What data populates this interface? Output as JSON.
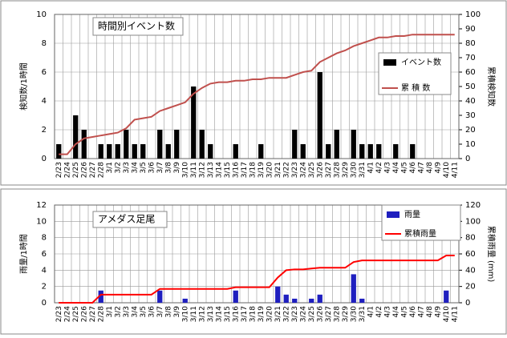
{
  "chart_data": [
    {
      "type": "bar",
      "title": "時間別イベント数",
      "y_label": "検知数/1時間",
      "y2_label": "累積検知数",
      "categories": [
        "2/23",
        "2/24",
        "2/25",
        "2/26",
        "2/27",
        "2/28",
        "3/1",
        "3/2",
        "3/3",
        "3/4",
        "3/5",
        "3/6",
        "3/7",
        "3/8",
        "3/9",
        "3/10",
        "3/11",
        "3/12",
        "3/13",
        "3/14",
        "3/15",
        "3/16",
        "3/17",
        "3/18",
        "3/19",
        "3/20",
        "3/21",
        "3/22",
        "3/23",
        "3/24",
        "3/25",
        "3/26",
        "3/27",
        "3/28",
        "3/29",
        "3/30",
        "3/31",
        "4/1",
        "4/2",
        "4/3",
        "4/4",
        "4/5",
        "4/6",
        "4/7",
        "4/8",
        "4/9",
        "4/10",
        "4/11"
      ],
      "series": [
        {
          "name": "イベント数",
          "type": "bar",
          "color": "#000000",
          "values": [
            1,
            0,
            3,
            2,
            0,
            1,
            1,
            1,
            2,
            1,
            1,
            0,
            2,
            1,
            2,
            0,
            5,
            2,
            1,
            0,
            0,
            1,
            0,
            0,
            1,
            0,
            0,
            0,
            2,
            1,
            0,
            6,
            1,
            2,
            0,
            2,
            1,
            1,
            1,
            0,
            1,
            0,
            1,
            0,
            0,
            0,
            0,
            0
          ]
        },
        {
          "name": "累 積 数",
          "type": "line",
          "axis": "y2",
          "color": "#c0504d",
          "values": [
            3,
            3,
            10,
            14,
            15,
            16,
            17,
            18,
            21,
            27,
            28,
            29,
            33,
            35,
            37,
            39,
            45,
            49,
            52,
            53,
            53,
            54,
            54,
            55,
            55,
            56,
            56,
            56,
            58,
            60,
            61,
            67,
            70,
            73,
            75,
            78,
            80,
            82,
            84,
            84,
            85,
            85,
            86,
            86,
            86,
            86,
            86,
            86
          ]
        }
      ],
      "ylim": [
        0,
        10
      ],
      "yticks": [
        0,
        2,
        4,
        6,
        8,
        10
      ],
      "y2lim": [
        0,
        100
      ],
      "y2ticks": [
        0,
        10,
        20,
        30,
        40,
        50,
        60,
        70,
        80,
        90,
        100
      ],
      "grid": true
    },
    {
      "type": "bar",
      "title": "アメダス足尾",
      "y_label": "雨量/1時間",
      "y2_label": "累積雨量 (mm)",
      "categories": [
        "2/23",
        "2/24",
        "2/25",
        "2/26",
        "2/27",
        "2/28",
        "3/1",
        "3/2",
        "3/3",
        "3/4",
        "3/5",
        "3/6",
        "3/7",
        "3/8",
        "3/9",
        "3/10",
        "3/11",
        "3/12",
        "3/13",
        "3/14",
        "3/15",
        "3/16",
        "3/17",
        "3/18",
        "3/19",
        "3/20",
        "3/21",
        "3/22",
        "3/23",
        "3/24",
        "3/25",
        "3/26",
        "3/27",
        "3/28",
        "3/29",
        "3/30",
        "3/31",
        "4/1",
        "4/2",
        "4/3",
        "4/4",
        "4/5",
        "4/6",
        "4/7",
        "4/8",
        "4/9",
        "4/10",
        "4/11"
      ],
      "series": [
        {
          "name": "雨量",
          "type": "bar",
          "color": "#1f1fbf",
          "values": [
            0,
            0,
            0,
            0,
            0,
            1.5,
            0,
            0,
            0,
            0,
            0,
            0,
            1.5,
            0,
            0,
            0.5,
            0,
            0,
            0,
            0,
            0,
            1.5,
            0,
            0,
            0,
            0,
            2,
            1,
            0.5,
            0,
            0.5,
            1,
            0,
            0,
            0,
            3.5,
            0.5,
            0,
            0,
            0,
            0,
            0,
            0,
            0,
            0,
            0,
            1.5,
            0
          ]
        },
        {
          "name": "累積雨量",
          "type": "line",
          "axis": "y2",
          "color": "#ff0000",
          "values": [
            0,
            0,
            0,
            0,
            0,
            10,
            10,
            10,
            10,
            10,
            10,
            10,
            17,
            17,
            17,
            17,
            17,
            17,
            17,
            17,
            17,
            19,
            19,
            19,
            19,
            19,
            31,
            40,
            41,
            41,
            42,
            43,
            43,
            43,
            43,
            50,
            52,
            52,
            52,
            52,
            52,
            52,
            52,
            52,
            52,
            52,
            58,
            58
          ]
        }
      ],
      "ylim": [
        0,
        12
      ],
      "yticks": [
        0,
        2,
        4,
        6,
        8,
        10,
        12
      ],
      "y2lim": [
        0,
        120
      ],
      "y2ticks": [
        0,
        20,
        40,
        60,
        80,
        100,
        120
      ],
      "grid": true
    }
  ]
}
